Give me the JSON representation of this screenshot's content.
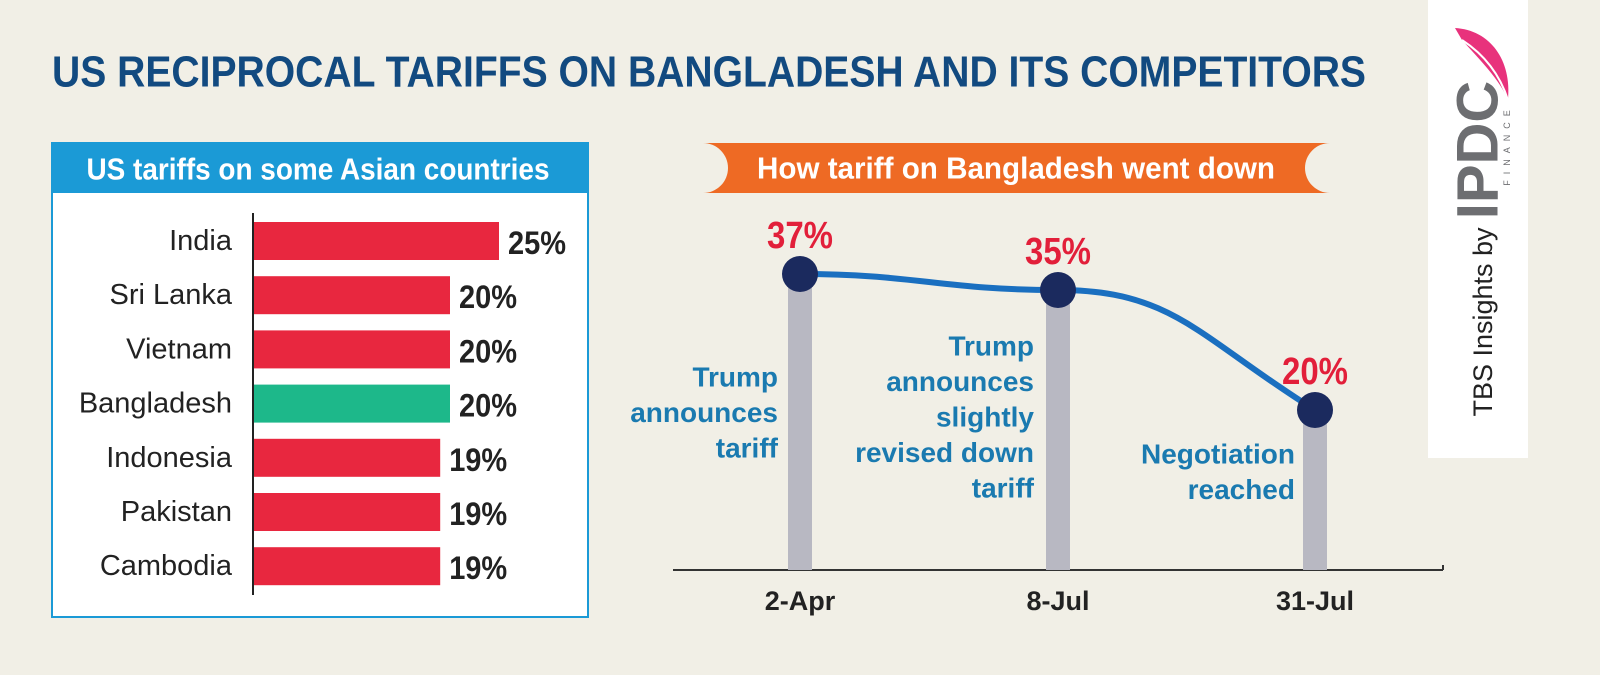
{
  "title": "US RECIPROCAL TARIFFS ON BANGLADESH AND ITS COMPETITORS",
  "sidebar": {
    "credit": "TBS Insights by",
    "logo": "IPDC",
    "logo_subtitle": "FINANCE"
  },
  "chart_data": [
    {
      "type": "bar",
      "orientation": "horizontal",
      "title": "US tariffs on some Asian countries",
      "categories": [
        "India",
        "Sri Lanka",
        "Vietnam",
        "Bangladesh",
        "Indonesia",
        "Pakistan",
        "Cambodia"
      ],
      "values": [
        25,
        20,
        20,
        20,
        19,
        19,
        19
      ],
      "value_labels": [
        "25%",
        "20%",
        "20%",
        "20%",
        "19%",
        "19%",
        "19%"
      ],
      "colors": [
        "#e8273f",
        "#e8273f",
        "#e8273f",
        "#1db88a",
        "#e8273f",
        "#e8273f",
        "#e8273f"
      ],
      "xlim": [
        0,
        25
      ]
    },
    {
      "type": "line",
      "title": "How tariff on Bangladesh went down",
      "categories": [
        "2-Apr",
        "8-Jul",
        "31-Jul"
      ],
      "values": [
        37,
        35,
        20
      ],
      "value_labels": [
        "37%",
        "35%",
        "20%"
      ],
      "annotations": [
        [
          "Trump",
          "announces",
          "tariff"
        ],
        [
          "Trump",
          "announces",
          "slightly",
          "revised down",
          "tariff"
        ],
        [
          "Negotiation",
          "reached"
        ]
      ],
      "color": "#1a6fc0",
      "point_color": "#1b2a5e",
      "pillar_color": "#b8b8c2",
      "ylim": [
        0,
        40
      ]
    }
  ]
}
